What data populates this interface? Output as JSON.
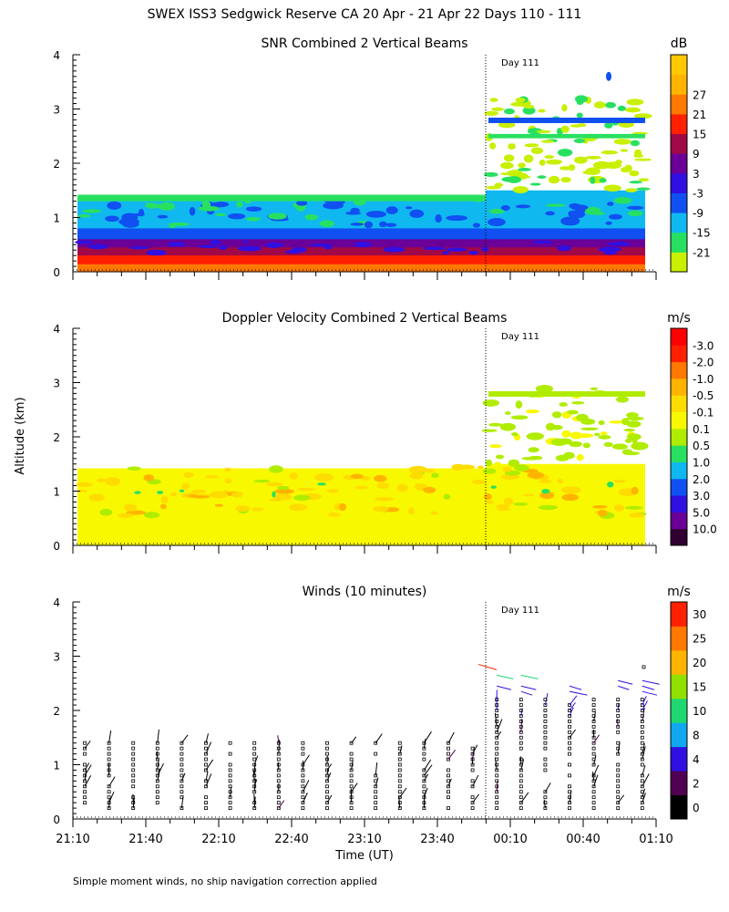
{
  "chart_data": [
    {
      "type": "heatmap",
      "title": "SNR Combined 2 Vertical Beams",
      "ylabel": "Altitude (km)",
      "ylim": [
        0,
        4
      ],
      "yticks": [
        "0",
        "1",
        "2",
        "3",
        "4"
      ],
      "colorbar_unit": "dB",
      "colorbar_labels": [
        "-21",
        "-15",
        "-9",
        "-3",
        "3",
        "9",
        "15",
        "21",
        "27"
      ],
      "colorbar_colors": [
        "#c8f000",
        "#28e060",
        "#10b8f0",
        "#1050f0",
        "#3010e0",
        "#6a0098",
        "#a00848",
        "#ff2000",
        "#ff7800",
        "#ffb400",
        "#ffc800"
      ],
      "annotation": "Day 111",
      "layers_before_day111": [
        {
          "from_km": 0.0,
          "to_km": 0.12,
          "level": "15 to 21"
        },
        {
          "from_km": 0.12,
          "to_km": 0.35,
          "level": "21 to 27"
        },
        {
          "from_km": 0.35,
          "to_km": 0.6,
          "level": "3 to 15"
        },
        {
          "from_km": 0.6,
          "to_km": 0.8,
          "level": "-3 to 3"
        },
        {
          "from_km": 0.8,
          "to_km": 1.3,
          "level": "-9 to -3"
        },
        {
          "from_km": 1.3,
          "to_km": 1.42,
          "level": "-15 to -9"
        }
      ]
    },
    {
      "type": "heatmap",
      "title": "Doppler Velocity Combined 2 Vertical Beams",
      "ylabel": "Altitude (km)",
      "ylim": [
        0,
        4
      ],
      "yticks": [
        "0",
        "1",
        "2",
        "3",
        "4"
      ],
      "colorbar_unit": "m/s",
      "colorbar_labels": [
        "10.0",
        "5.0",
        "3.0",
        "2.0",
        "1.0",
        "0.5",
        "0.1",
        "-0.1",
        "-0.5",
        "-1.0",
        "-2.0",
        "-3.0"
      ],
      "colorbar_colors": [
        "#300030",
        "#6a0098",
        "#3010e0",
        "#1050f0",
        "#10b8f0",
        "#28e060",
        "#b0ec00",
        "#f8f800",
        "#ffdc00",
        "#ffb400",
        "#ff7800",
        "#ff2000",
        "#ff0000"
      ],
      "annotation": "Day 111"
    },
    {
      "type": "scatter",
      "title": "Winds (10 minutes)",
      "ylabel": "Altitude (km)",
      "xlabel": "Time (UT)",
      "ylim": [
        0,
        4
      ],
      "yticks": [
        "0",
        "1",
        "2",
        "3",
        "4"
      ],
      "xticks": [
        "21:10",
        "21:40",
        "22:10",
        "22:40",
        "23:10",
        "23:40",
        "00:10",
        "00:40",
        "01:10"
      ],
      "colorbar_unit": "m/s",
      "colorbar_labels": [
        "0",
        "2",
        "4",
        "8",
        "10",
        "15",
        "20",
        "25",
        "30"
      ],
      "colorbar_colors": [
        "#000000",
        "#500050",
        "#3010e0",
        "#10a8f0",
        "#20d870",
        "#90e000",
        "#ffb400",
        "#ff7800",
        "#ff2000"
      ],
      "annotation": "Day 111"
    }
  ],
  "header": {
    "title": "SWEX ISS3 Sedgwick Reserve CA  20 Apr - 21 Apr 22 Days 110 - 111"
  },
  "footer": {
    "note": "Simple moment winds, no ship navigation correction applied"
  }
}
